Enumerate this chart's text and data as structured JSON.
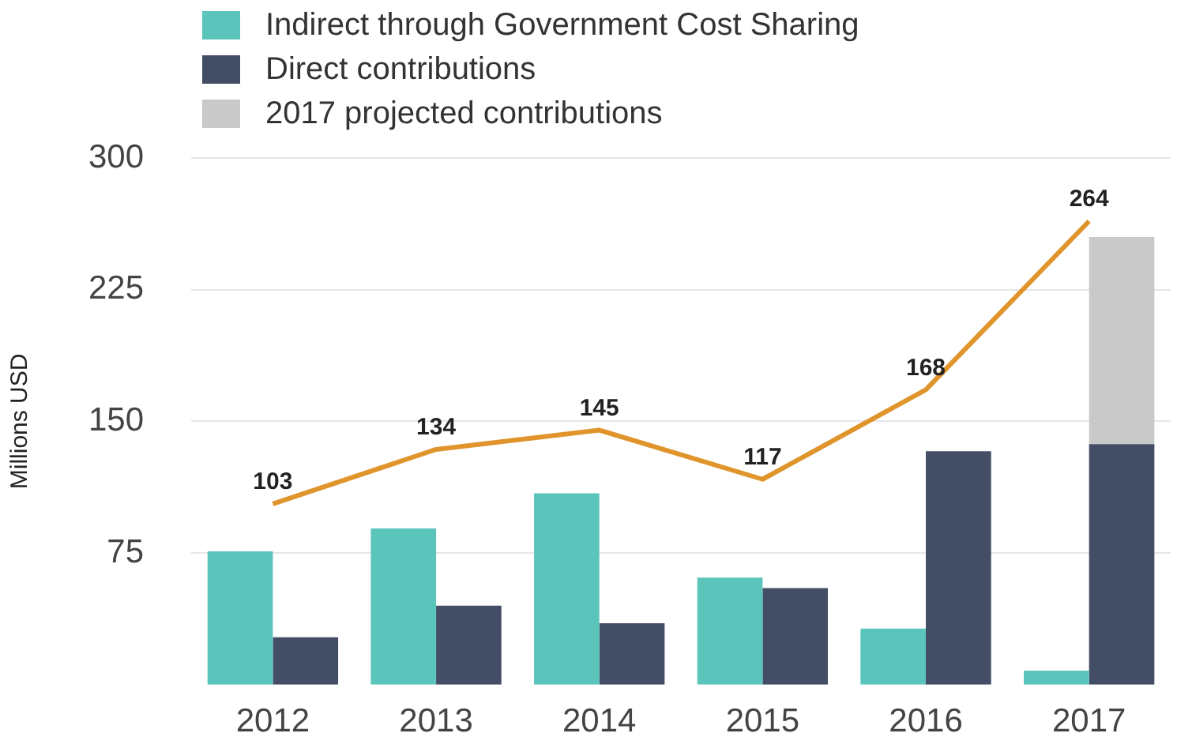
{
  "chart_data": {
    "type": "bar",
    "ylabel": "Millions USD",
    "categories": [
      "2012",
      "2013",
      "2014",
      "2015",
      "2016",
      "2017"
    ],
    "series": [
      {
        "name": "Indirect through Government Cost Sharing",
        "color": "#5bc4bb",
        "values": [
          76,
          89,
          109,
          61,
          32,
          8
        ]
      },
      {
        "name": "Direct contributions",
        "color": "#434e66",
        "values": [
          27,
          45,
          35,
          55,
          133,
          137
        ]
      },
      {
        "name": "2017 projected contributions",
        "color": "#c8c9c8",
        "values": [
          null,
          null,
          null,
          null,
          null,
          118
        ],
        "base": [
          null,
          null,
          null,
          null,
          null,
          137
        ]
      },
      {
        "type": "line",
        "color": "#e0952c",
        "values": [
          103,
          134,
          145,
          117,
          168,
          264
        ],
        "value_labels": [
          "103",
          "134",
          "145",
          "117",
          "168",
          "264"
        ]
      }
    ],
    "ylim": [
      0,
      300
    ],
    "yticks": [
      75,
      150,
      225,
      300
    ],
    "grid": "y",
    "legend": "top left",
    "marker": "none"
  }
}
